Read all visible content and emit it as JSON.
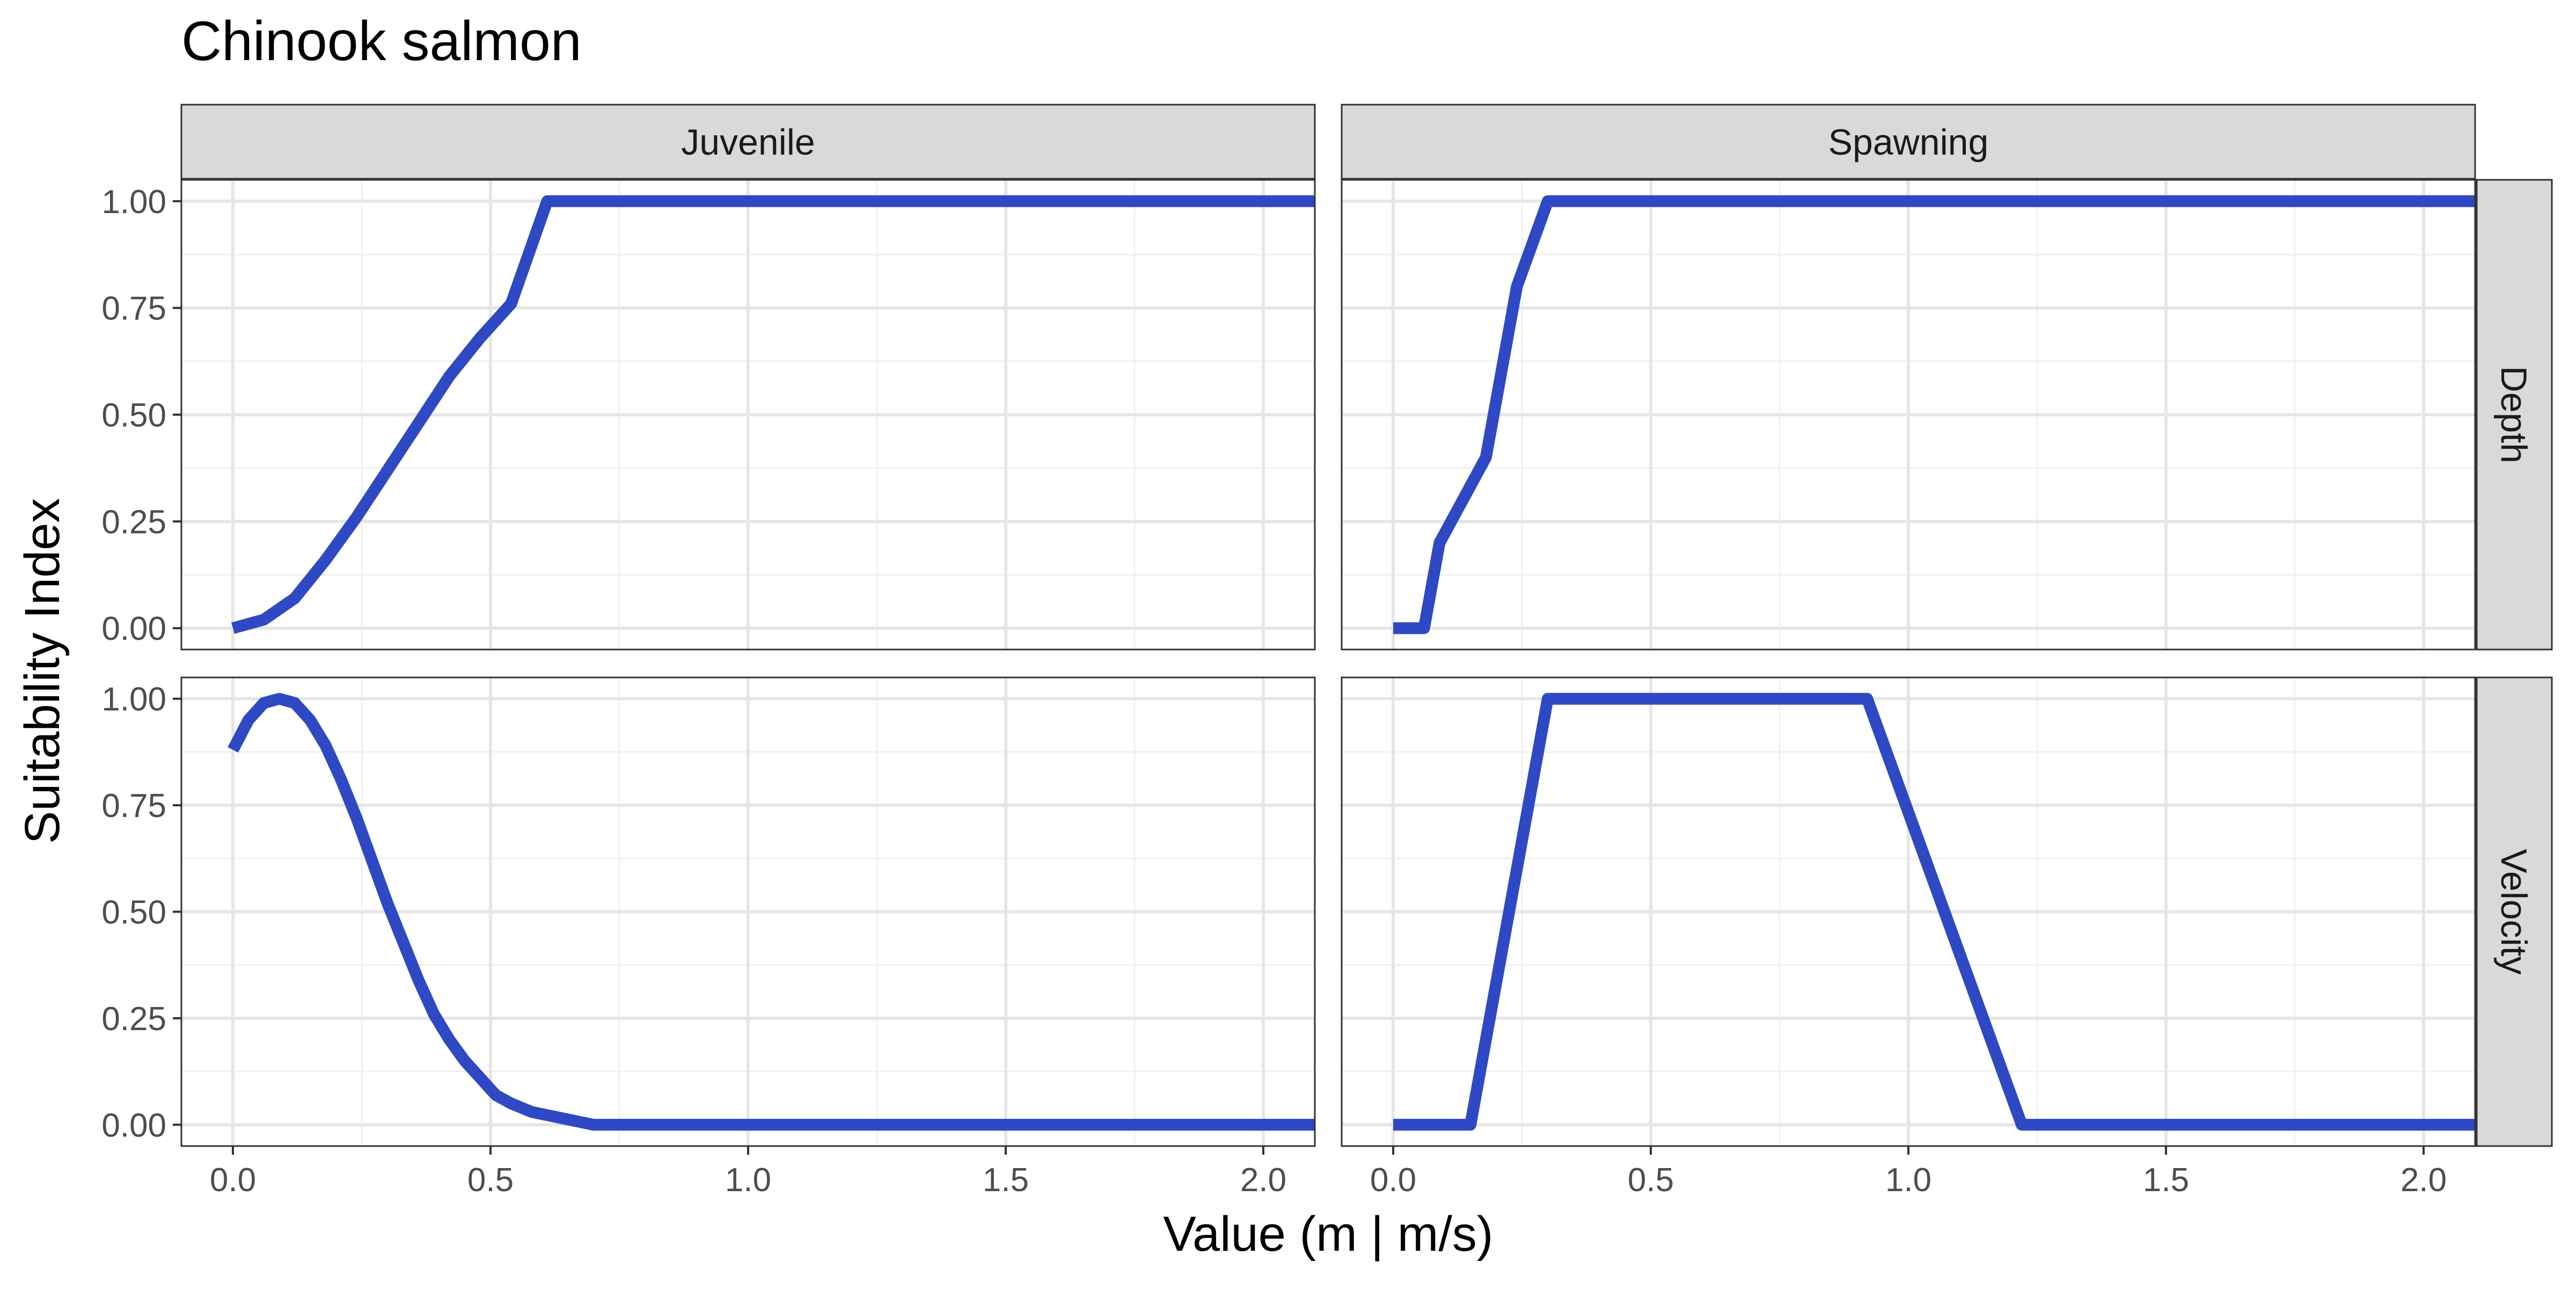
{
  "chart_data": {
    "type": "line",
    "title": "Chinook salmon",
    "xlabel": "Value (m | m/s)",
    "ylabel": "Suitability Index",
    "xlim": [
      -0.1,
      2.1
    ],
    "ylim": [
      -0.05,
      1.05
    ],
    "xticks": [
      0.0,
      0.5,
      1.0,
      1.5,
      2.0
    ],
    "xtick_labels": [
      "0.0",
      "0.5",
      "1.0",
      "1.5",
      "2.0"
    ],
    "yticks": [
      0.0,
      0.25,
      0.5,
      0.75,
      1.0
    ],
    "ytick_labels": [
      "0.00",
      "0.25",
      "0.50",
      "0.75",
      "1.00"
    ],
    "grid": true,
    "line_color": "#2f49c4",
    "column_facets": [
      "Juvenile",
      "Spawning"
    ],
    "row_facets": [
      "Depth",
      "Velocity"
    ],
    "panels": [
      {
        "column": "Juvenile",
        "row": "Depth",
        "x": [
          0.0,
          0.06,
          0.12,
          0.18,
          0.24,
          0.3,
          0.36,
          0.42,
          0.48,
          0.54,
          0.61,
          0.7,
          1.0,
          1.5,
          2.1
        ],
        "y": [
          0.0,
          0.02,
          0.07,
          0.16,
          0.26,
          0.37,
          0.48,
          0.59,
          0.68,
          0.76,
          1.0,
          1.0,
          1.0,
          1.0,
          1.0
        ]
      },
      {
        "column": "Spawning",
        "row": "Depth",
        "x": [
          0.0,
          0.06,
          0.09,
          0.18,
          0.24,
          0.3,
          0.5,
          1.0,
          1.5,
          2.1
        ],
        "y": [
          0.0,
          0.0,
          0.2,
          0.4,
          0.8,
          1.0,
          1.0,
          1.0,
          1.0,
          1.0
        ]
      },
      {
        "column": "Juvenile",
        "row": "Velocity",
        "x": [
          0.0,
          0.03,
          0.06,
          0.09,
          0.12,
          0.15,
          0.18,
          0.21,
          0.24,
          0.27,
          0.3,
          0.33,
          0.36,
          0.39,
          0.42,
          0.45,
          0.48,
          0.51,
          0.54,
          0.58,
          0.62,
          0.66,
          0.7,
          0.8,
          1.0,
          1.5,
          2.1
        ],
        "y": [
          0.88,
          0.95,
          0.99,
          1.0,
          0.99,
          0.95,
          0.89,
          0.81,
          0.72,
          0.62,
          0.52,
          0.43,
          0.34,
          0.26,
          0.2,
          0.15,
          0.11,
          0.07,
          0.05,
          0.03,
          0.02,
          0.01,
          0.0,
          0.0,
          0.0,
          0.0,
          0.0
        ]
      },
      {
        "column": "Spawning",
        "row": "Velocity",
        "x": [
          0.0,
          0.15,
          0.3,
          0.5,
          0.92,
          1.22,
          1.5,
          2.1
        ],
        "y": [
          0.0,
          0.0,
          1.0,
          1.0,
          1.0,
          0.0,
          0.0,
          0.0
        ]
      }
    ]
  }
}
